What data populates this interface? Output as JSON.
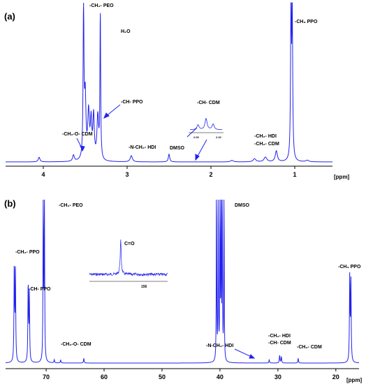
{
  "colors": {
    "spectrum": "#2222ee",
    "axis": "#000000",
    "text": "#000000"
  },
  "chart_data": [
    {
      "type": "line",
      "panel": "(a)",
      "unit": "[ppm]",
      "xlim": [
        4.45,
        0.55
      ],
      "ticks": [
        4,
        3,
        2,
        1
      ],
      "tick_labels": [
        "4",
        "3",
        "2",
        "1"
      ],
      "peaks": [
        {
          "x": 4.05,
          "y": 0.03,
          "w": 0.012
        },
        {
          "x": 3.64,
          "y": 0.04,
          "w": 0.012
        },
        {
          "x": 3.52,
          "y": 1.0,
          "w": 0.006
        },
        {
          "x": 3.5,
          "y": 0.4,
          "w": 0.01
        },
        {
          "x": 3.46,
          "y": 0.3,
          "w": 0.012
        },
        {
          "x": 3.43,
          "y": 0.24,
          "w": 0.01
        },
        {
          "x": 3.4,
          "y": 0.28,
          "w": 0.01
        },
        {
          "x": 3.35,
          "y": 0.28,
          "w": 0.012
        },
        {
          "x": 3.32,
          "y": 0.95,
          "w": 0.005
        },
        {
          "x": 2.95,
          "y": 0.04,
          "w": 0.015
        },
        {
          "x": 2.5,
          "y": 0.05,
          "w": 0.01
        },
        {
          "x": 1.75,
          "y": 0.01,
          "w": 0.02
        },
        {
          "x": 1.48,
          "y": 0.02,
          "w": 0.02
        },
        {
          "x": 1.35,
          "y": 0.03,
          "w": 0.02
        },
        {
          "x": 1.22,
          "y": 0.07,
          "w": 0.015
        },
        {
          "x": 1.045,
          "y": 1.0,
          "w": 0.006
        },
        {
          "x": 1.03,
          "y": 0.95,
          "w": 0.006
        },
        {
          "x": 0.85,
          "y": 0.01,
          "w": 0.02
        }
      ],
      "annotations": [
        {
          "id": "ch2-peo",
          "text": "-CH₂- PEO"
        },
        {
          "id": "h2o",
          "text": "H₂O"
        },
        {
          "id": "ch-ppo",
          "text": "-CH- PPO"
        },
        {
          "id": "ch2o-cdm",
          "text": "-CH₂-O- CDM"
        },
        {
          "id": "nch2-hdi",
          "text": "-N-CH₂- HDI"
        },
        {
          "id": "dmso",
          "text": "DMSO"
        },
        {
          "id": "ch-cdm",
          "text": "-CH- CDM"
        },
        {
          "id": "ch2-hdi",
          "text": "-CH₂- HDI"
        },
        {
          "id": "ch2-cdm",
          "text": "-CH₂- CDM"
        },
        {
          "id": "ch3-ppo",
          "text": "-CH₃ PPO"
        }
      ],
      "inset": {
        "x_tick_labels": [
          "2.00",
          "2.20"
        ],
        "peaks": [
          {
            "x": 0.25,
            "y": 0.35,
            "w": 0.04
          },
          {
            "x": 0.5,
            "y": 0.8,
            "w": 0.04
          },
          {
            "x": 0.72,
            "y": 0.4,
            "w": 0.04
          }
        ]
      }
    },
    {
      "type": "line",
      "panel": "(b)",
      "unit": "[ppm]",
      "xlim": [
        77,
        16
      ],
      "ticks": [
        70,
        60,
        50,
        40,
        30,
        20
      ],
      "tick_labels": [
        "70",
        "60",
        "50",
        "40",
        "30",
        "20"
      ],
      "peaks": [
        {
          "x": 75.5,
          "y": 0.62,
          "w": 0.06
        },
        {
          "x": 75.3,
          "y": 0.55,
          "w": 0.06
        },
        {
          "x": 73.1,
          "y": 0.5,
          "w": 0.06
        },
        {
          "x": 72.9,
          "y": 0.42,
          "w": 0.06
        },
        {
          "x": 70.5,
          "y": 1.1,
          "w": 0.05
        },
        {
          "x": 70.3,
          "y": 1.05,
          "w": 0.05
        },
        {
          "x": 68.6,
          "y": 0.02,
          "w": 0.06
        },
        {
          "x": 67.5,
          "y": 0.02,
          "w": 0.06
        },
        {
          "x": 63.5,
          "y": 0.03,
          "w": 0.06
        },
        {
          "x": 40.6,
          "y": 1.2,
          "w": 0.04
        },
        {
          "x": 40.3,
          "y": 1.2,
          "w": 0.04
        },
        {
          "x": 40.0,
          "y": 1.2,
          "w": 0.04
        },
        {
          "x": 39.8,
          "y": 1.2,
          "w": 0.04
        },
        {
          "x": 39.6,
          "y": 1.2,
          "w": 0.04
        },
        {
          "x": 39.3,
          "y": 1.2,
          "w": 0.04
        },
        {
          "x": 31.5,
          "y": 0.02,
          "w": 0.06
        },
        {
          "x": 29.7,
          "y": 0.05,
          "w": 0.06
        },
        {
          "x": 29.4,
          "y": 0.04,
          "w": 0.06
        },
        {
          "x": 26.5,
          "y": 0.03,
          "w": 0.06
        },
        {
          "x": 17.6,
          "y": 0.55,
          "w": 0.06
        },
        {
          "x": 17.4,
          "y": 0.5,
          "w": 0.06
        }
      ],
      "annotations": [
        {
          "id": "ch2-peo-b",
          "text": "-CH₂- PEO"
        },
        {
          "id": "dmso-b",
          "text": "DMSO"
        },
        {
          "id": "ch2-ppo-b",
          "text": "-CH₂- PPO"
        },
        {
          "id": "ch-ppo-b",
          "text": "-CH- PPO"
        },
        {
          "id": "c-o",
          "text": "C=O"
        },
        {
          "id": "ch2o-cdm-b",
          "text": "-CH₂-O- CDM"
        },
        {
          "id": "nch2-hdi-b",
          "text": "-N-CH₂- HDI"
        },
        {
          "id": "ch2-hdi-b",
          "text": "-CH₂- HDI"
        },
        {
          "id": "ch-cdm-b",
          "text": "-CH- CDM"
        },
        {
          "id": "ch2-cdm-b",
          "text": "-CH₂- CDM"
        },
        {
          "id": "ch3-ppo-b",
          "text": "-CH₃ PPO"
        }
      ],
      "inset": {
        "x_tick_labels": [
          "156"
        ],
        "peaks": [
          {
            "x": 0.4,
            "y": 1.0,
            "w": 0.008
          }
        ]
      }
    }
  ]
}
